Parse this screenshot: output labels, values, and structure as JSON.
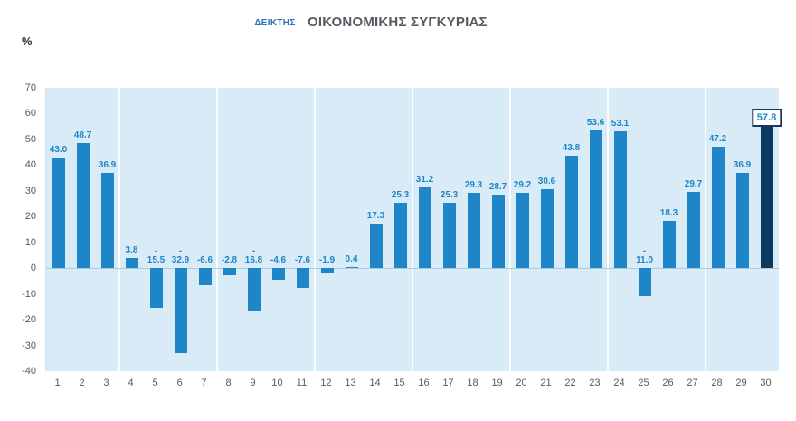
{
  "title": {
    "prefix": "ΔΕΙΚΤΗΣ",
    "main": "ΟΙΚΟΝΟΜΙΚΗΣ ΣΥΓΚΥΡΙΑΣ"
  },
  "unit_label": "%",
  "chart_data": {
    "type": "bar",
    "title": "ΔΕΙΚΤΗΣ ΟΙΚΟΝΟΜΙΚΗΣ ΣΥΓΚΥΡΙΑΣ",
    "xlabel": "",
    "ylabel": "%",
    "ylim": [
      -40,
      70
    ],
    "yticks": [
      70,
      60,
      50,
      40,
      30,
      20,
      10,
      0,
      -10,
      -20,
      -30,
      -40
    ],
    "grid": false,
    "legend": "none",
    "categories": [
      "1",
      "2",
      "3",
      "4",
      "5",
      "6",
      "7",
      "8",
      "9",
      "10",
      "11",
      "12",
      "13",
      "14",
      "15",
      "16",
      "17",
      "18",
      "19",
      "20",
      "21",
      "22",
      "23",
      "24",
      "25",
      "26",
      "27",
      "28",
      "29",
      "30"
    ],
    "values": [
      43.0,
      48.7,
      36.9,
      3.8,
      -15.5,
      -32.9,
      -6.6,
      -2.8,
      -16.8,
      -4.6,
      -7.6,
      -1.9,
      0.4,
      17.3,
      25.3,
      31.2,
      25.3,
      29.3,
      28.7,
      29.2,
      30.6,
      43.8,
      53.6,
      53.1,
      -11.0,
      18.3,
      29.7,
      47.2,
      36.9,
      57.8
    ],
    "display_labels": [
      "43.0",
      "48.7",
      "36.9",
      "3.8",
      "15.5",
      "32.9",
      "-6.6",
      "-2.8",
      "16.8",
      "-4.6",
      "-7.6",
      "-1.9",
      "0.4",
      "17.3",
      "25.3",
      "31.2",
      "25.3",
      "29.3",
      "28.7",
      "29.2",
      "30.6",
      "43.8",
      "53.6",
      "53.1",
      "11.0",
      "18.3",
      "29.7",
      "47.2",
      "36.9",
      "57.8"
    ],
    "split_minus_indices": [
      4,
      5,
      8,
      24
    ],
    "highlight_index": 29,
    "bar_color": "#1e86c8",
    "highlight_color": "#0d3a60",
    "label_color": "#1e86c8",
    "plot_bg": "#d9ebf7",
    "separators_after": [
      3,
      7,
      11,
      15,
      19,
      23,
      27
    ]
  }
}
